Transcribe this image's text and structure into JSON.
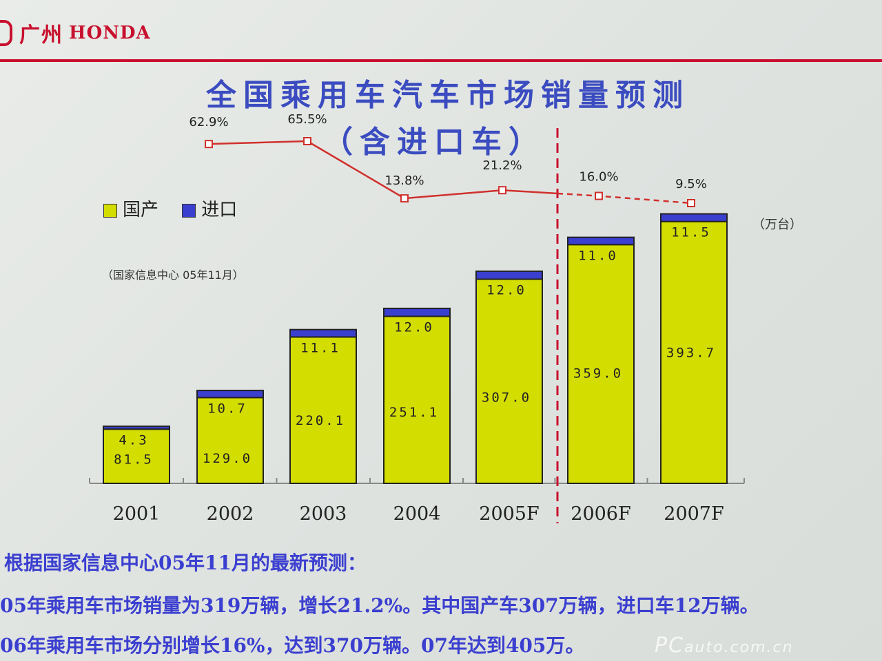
{
  "brand": {
    "cn": "广州",
    "en": "HONDA"
  },
  "title_line1": "全国乘用车汽车市场销量预测",
  "title_line2": "（含进口车）",
  "legend": [
    {
      "label": "国产",
      "color": "#d4dd00"
    },
    {
      "label": "进口",
      "color": "#3b3fcf"
    }
  ],
  "unit": "（万台）",
  "source_note": "（国家信息中心 05年11月）",
  "chart_data": {
    "type": "bar",
    "stacked": true,
    "categories": [
      "2001",
      "2002",
      "2003",
      "2004",
      "2005F",
      "2006F",
      "2007F"
    ],
    "series": [
      {
        "name": "国产",
        "color": "#d4dd00",
        "values": [
          81.5,
          129.0,
          220.1,
          251.1,
          307.0,
          359.0,
          393.7
        ],
        "labels": [
          "81.5",
          "129.0",
          "220.1",
          "251.1",
          "307.0",
          "359.0",
          "393.7"
        ]
      },
      {
        "name": "进口",
        "color": "#3b3fcf",
        "values": [
          4.3,
          10.7,
          11.1,
          12.0,
          12.0,
          11.0,
          11.5
        ],
        "labels": [
          "4.3",
          "10.7",
          "11.1",
          "12.0",
          "12.0",
          "11.0",
          "11.5"
        ]
      }
    ],
    "growth_line": {
      "values": [
        62.9,
        65.5,
        13.8,
        21.2,
        16.0,
        9.5
      ],
      "labels": [
        "62.9%",
        "65.5%",
        "13.8%",
        "21.2%",
        "16.0%",
        "9.5%"
      ],
      "categories": [
        "2002",
        "2003",
        "2004",
        "2005F",
        "2006F",
        "2007F"
      ],
      "forecast_from": "2006F",
      "color": "#d0302c"
    },
    "forecast_divider_after": "2005F",
    "ylim": [
      0,
      420
    ]
  },
  "footer": [
    "根据国家信息中心05年11月的最新预测：",
    "05年乘用车市场销量为319万辆，增长21.2%。其中国产车307万辆，进口车12万辆。",
    "06年乘用车市场分别增长16%，达到370万辆。07年达到405万。"
  ],
  "watermark": {
    "main": "PC",
    "rest": "auto.com.cn"
  }
}
